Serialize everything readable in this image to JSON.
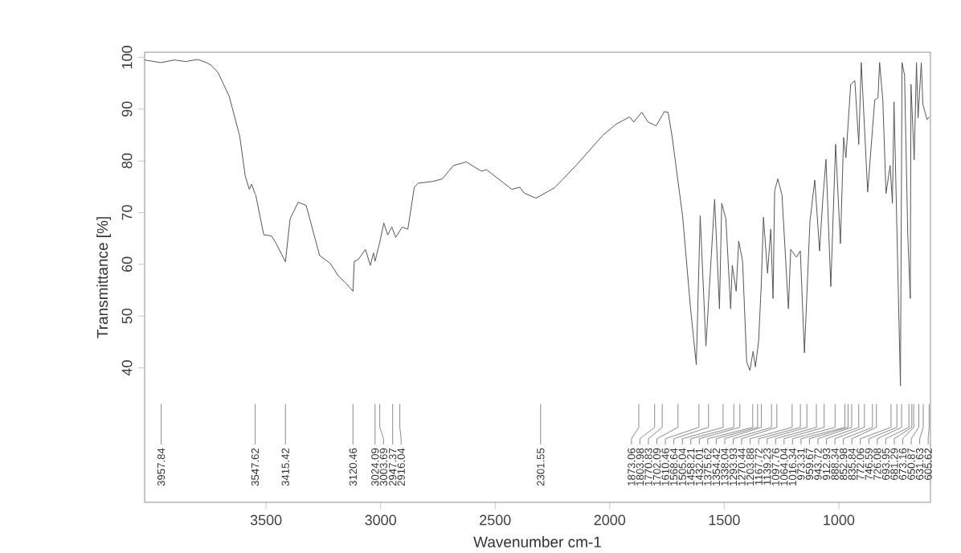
{
  "chart_data": {
    "type": "line",
    "xlabel": "Wavenumber cm-1",
    "ylabel": "Transmittance [%]",
    "color": "#555555",
    "xlim": [
      4030,
      600
    ],
    "ylim": [
      14,
      101
    ],
    "xticks": [
      3500,
      3000,
      2500,
      2000,
      1500,
      1000
    ],
    "yticks": [
      40,
      50,
      60,
      70,
      80,
      90,
      100
    ],
    "x": [
      4030,
      3960,
      3957.84,
      3900,
      3850,
      3800,
      3760,
      3740,
      3710,
      3661,
      3615,
      3591,
      3573,
      3563,
      3547.62,
      3545,
      3510,
      3476,
      3458,
      3415.42,
      3395,
      3360,
      3325,
      3266,
      3220,
      3185,
      3150,
      3120.46,
      3115,
      3098,
      3066,
      3045,
      3031,
      3024.09,
      3003.69,
      2986,
      2969,
      2951,
      2947.37,
      2934,
      2916.04,
      2906,
      2881,
      2853,
      2836,
      2776,
      2731,
      2682,
      2626,
      2560,
      2538,
      2427,
      2392,
      2374,
      2322,
      2301.55,
      2241,
      2147,
      2031,
      1972,
      1913,
      1895,
      1873.06,
      1860,
      1832,
      1803.98,
      1797,
      1770.83,
      1762,
      1745,
      1727,
      1702.09,
      1682,
      1647,
      1622,
      1610.46,
      1605,
      1580,
      1568.64,
      1542,
      1521,
      1511,
      1505.04,
      1493,
      1472,
      1465,
      1458.21,
      1448,
      1437,
      1432.01,
      1420,
      1402,
      1388,
      1375.62,
      1374,
      1364,
      1354.42,
      1350,
      1339,
      1338.04,
      1329,
      1311,
      1297,
      1293.93,
      1287,
      1280,
      1270.44,
      1266,
      1248,
      1220,
      1210,
      1203.88,
      1185,
      1168,
      1167.72,
      1150,
      1139.23,
      1126,
      1105,
      1097.76,
      1084,
      1070,
      1064.04,
      1056,
      1035,
      1016.34,
      1014,
      993,
      979,
      973.31,
      969,
      959.67,
      948,
      943.72,
      930,
      912.93,
      902,
      888.34,
      874,
      852.98,
      843,
      835.84,
      829,
      822,
      808,
      794,
      776,
      772.06,
      766,
      759,
      746.59,
      731,
      726.08,
      724,
      713,
      699,
      693.95,
      688,
      685,
      681.29,
      673.16,
      671,
      661,
      654,
      650.87,
      640,
      633,
      631.63,
      615,
      605.62
    ],
    "values": [
      99.5,
      99,
      99.0,
      99.5,
      99.2,
      99.6,
      99,
      98.5,
      97.1,
      92.5,
      84.8,
      77.1,
      74.5,
      75.5,
      73.6,
      73.4,
      65.7,
      65.5,
      64.2,
      60.5,
      68.8,
      72,
      71.4,
      61.7,
      60.2,
      57.8,
      56.3,
      54.8,
      60.6,
      60.9,
      62.9,
      59.8,
      62.2,
      60.6,
      64.3,
      68,
      65.7,
      67.2,
      66.8,
      65.2,
      66.5,
      67.2,
      66.8,
      74.9,
      75.7,
      76,
      76.5,
      79.1,
      79.8,
      78,
      78.3,
      74.5,
      74.9,
      73.8,
      72.8,
      73.3,
      74.8,
      79.1,
      84.9,
      87.1,
      88.5,
      87.5,
      88.7,
      89.4,
      87.5,
      86.9,
      86.8,
      88.8,
      89.5,
      89.4,
      84.5,
      76.1,
      69.4,
      51.4,
      40.6,
      60.2,
      69.4,
      44.2,
      52.7,
      72.6,
      51.4,
      71.8,
      70.8,
      68.8,
      51.4,
      59.8,
      57.8,
      54.8,
      64.5,
      63.4,
      60.6,
      41.1,
      39.5,
      42.8,
      43.2,
      40.2,
      43.6,
      45.2,
      55.5,
      56.8,
      69.1,
      58.3,
      66.8,
      62.7,
      53.4,
      74.2,
      75.8,
      76.5,
      73.4,
      51.4,
      62.9,
      62.5,
      61.4,
      62.6,
      62.3,
      42.9,
      54.3,
      68.3,
      76.3,
      71.6,
      62.6,
      72.5,
      75.8,
      80.3,
      55.7,
      80.2,
      83.2,
      64,
      84.5,
      82.3,
      80.6,
      86.9,
      94.8,
      95.0,
      95.5,
      83.2,
      99,
      86.8,
      74,
      86.1,
      91.8,
      92.0,
      92.2,
      99,
      91.8,
      73.7,
      79.1,
      76.2,
      71.8,
      91.4,
      67.1,
      36.5,
      80.4,
      99,
      96.5,
      65.7,
      60.1,
      53.4,
      94.8,
      90.9,
      82.4,
      80.2,
      99,
      88.3,
      90.7,
      99,
      90.9,
      90.7,
      88,
      88.5
    ],
    "annotations": [
      {
        "text": "3957.84",
        "x": 3957.84
      },
      {
        "text": "3547.62",
        "x": 3547.62
      },
      {
        "text": "3415.42",
        "x": 3415.42
      },
      {
        "text": "3120.46",
        "x": 3120.46
      },
      {
        "text": "3024.09",
        "x": 3024.09
      },
      {
        "text": "3003.69",
        "x": 3003.69
      },
      {
        "text": "2947.37",
        "x": 2947.37
      },
      {
        "text": "2916.04",
        "x": 2916.04
      },
      {
        "text": "2301.55",
        "x": 2301.55
      },
      {
        "text": "1873.06",
        "x": 1873.06
      },
      {
        "text": "1803.98",
        "x": 1803.98
      },
      {
        "text": "1770.83",
        "x": 1770.83
      },
      {
        "text": "1702.09",
        "x": 1702.09
      },
      {
        "text": "1610.46",
        "x": 1610.46
      },
      {
        "text": "1568.64",
        "x": 1568.64
      },
      {
        "text": "1505.04",
        "x": 1505.04
      },
      {
        "text": "1458.21",
        "x": 1458.21
      },
      {
        "text": "1432.01",
        "x": 1432.01
      },
      {
        "text": "1375.62",
        "x": 1375.62
      },
      {
        "text": "1354.42",
        "x": 1354.42
      },
      {
        "text": "1338.04",
        "x": 1338.04
      },
      {
        "text": "1293.93",
        "x": 1293.93
      },
      {
        "text": "1270.44",
        "x": 1270.44
      },
      {
        "text": "1203.88",
        "x": 1203.88
      },
      {
        "text": "1167.72",
        "x": 1167.72
      },
      {
        "text": "1139.23",
        "x": 1139.23
      },
      {
        "text": "1097.76",
        "x": 1097.76
      },
      {
        "text": "1064.04",
        "x": 1064.04
      },
      {
        "text": "1016.34",
        "x": 1016.34
      },
      {
        "text": "973.31",
        "x": 973.31
      },
      {
        "text": "959.67",
        "x": 959.67
      },
      {
        "text": "943.72",
        "x": 943.72
      },
      {
        "text": "912.93",
        "x": 912.93
      },
      {
        "text": "888.34",
        "x": 888.34
      },
      {
        "text": "852.98",
        "x": 852.98
      },
      {
        "text": "835.84",
        "x": 835.84
      },
      {
        "text": "772.06",
        "x": 772.06
      },
      {
        "text": "746.59",
        "x": 746.59
      },
      {
        "text": "726.08",
        "x": 726.08
      },
      {
        "text": "693.95",
        "x": 693.95
      },
      {
        "text": "681.29",
        "x": 681.29
      },
      {
        "text": "673.16",
        "x": 673.16
      },
      {
        "text": "650.87",
        "x": 650.87
      },
      {
        "text": "631.63",
        "x": 631.63
      },
      {
        "text": "605.62",
        "x": 605.62
      }
    ]
  }
}
